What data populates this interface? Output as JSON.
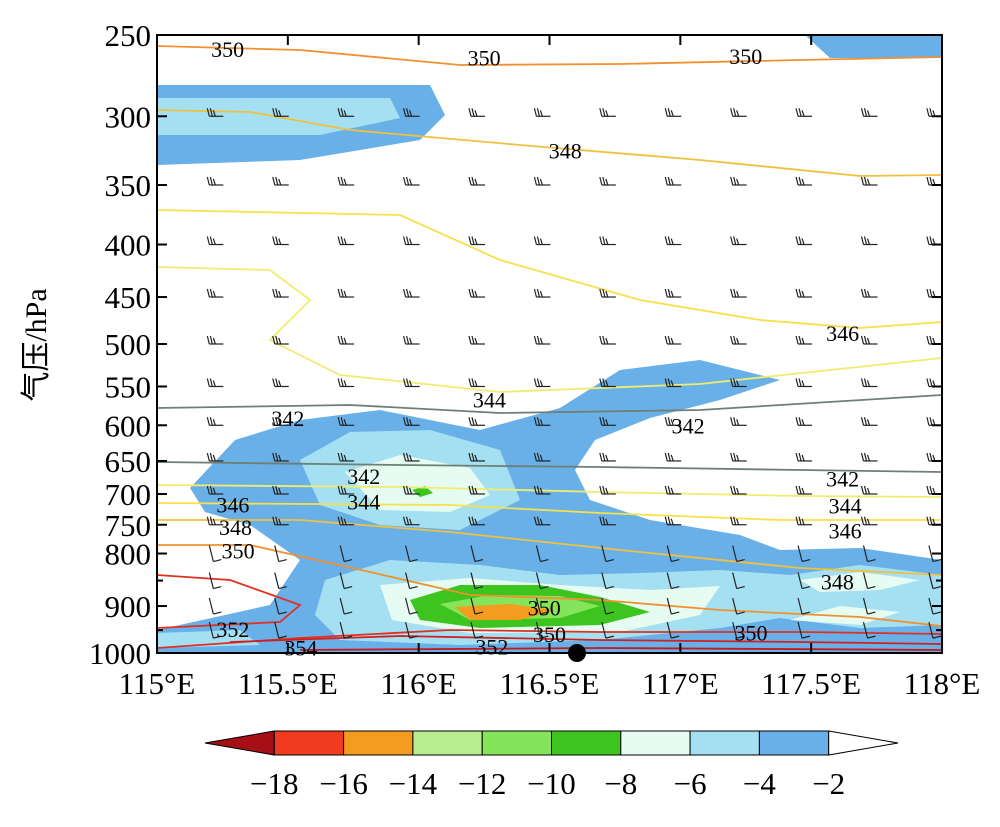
{
  "chart_data": {
    "type": "contour",
    "ylabel": "气压/hPa",
    "yscale": "log",
    "ylim": [
      1000,
      250
    ],
    "xlim": [
      115,
      118
    ],
    "y_ticks": [
      "250",
      "300",
      "350",
      "400",
      "450",
      "500",
      "550",
      "600",
      "650",
      "700",
      "750",
      "800",
      "900",
      "1000"
    ],
    "y_tick_values": [
      250,
      300,
      350,
      400,
      450,
      500,
      550,
      600,
      650,
      700,
      750,
      800,
      900,
      1000
    ],
    "y_minor_ticks": [
      850,
      950
    ],
    "x_ticks": [
      "115°E",
      "115.5°E",
      "116°E",
      "116.5°E",
      "117°E",
      "117.5°E",
      "118°E"
    ],
    "x_tick_values": [
      115,
      115.5,
      116,
      116.5,
      117,
      117.5,
      118
    ],
    "colorbar": {
      "tick_labels": [
        "−18",
        "−16",
        "−14",
        "−12",
        "−10",
        "−8",
        "−6",
        "−4",
        "−2"
      ],
      "colors": [
        "#a50f15",
        "#f03b20",
        "#f39c1f",
        "#b8ee90",
        "#86e45a",
        "#3dc41f",
        "#e6fbf2",
        "#a5e0f2",
        "#6ab0e8",
        "#ffffff"
      ]
    },
    "shading_levels": [
      {
        "level": -4,
        "color": "#6ab0e8"
      },
      {
        "level": -6,
        "color": "#a5e0f2"
      },
      {
        "level": -8,
        "color": "#e6fbf2"
      },
      {
        "level": -10,
        "color": "#3dc41f"
      },
      {
        "level": -12,
        "color": "#86e45a"
      },
      {
        "level": -14,
        "color": "#f39c1f"
      }
    ],
    "contour_lines": [
      {
        "value": 342,
        "color": "#6f7f74"
      },
      {
        "value": 344,
        "color": "#f0ec70"
      },
      {
        "value": 346,
        "color": "#f7e04a"
      },
      {
        "value": 348,
        "color": "#f0c040"
      },
      {
        "value": 350,
        "color": "#f09030"
      },
      {
        "value": 352,
        "color": "#e03020"
      },
      {
        "value": 354,
        "color": "#d02020"
      }
    ],
    "contour_labels": [
      {
        "text": "350",
        "x": 115.27,
        "p": 258
      },
      {
        "text": "350",
        "x": 116.25,
        "p": 263
      },
      {
        "text": "350",
        "x": 117.25,
        "p": 262
      },
      {
        "text": "348",
        "x": 116.56,
        "p": 324
      },
      {
        "text": "346",
        "x": 117.62,
        "p": 488
      },
      {
        "text": "344",
        "x": 116.27,
        "p": 566
      },
      {
        "text": "342",
        "x": 115.5,
        "p": 590
      },
      {
        "text": "342",
        "x": 117.03,
        "p": 600
      },
      {
        "text": "342",
        "x": 115.79,
        "p": 672
      },
      {
        "text": "344",
        "x": 115.79,
        "p": 712
      },
      {
        "text": "342",
        "x": 117.62,
        "p": 676
      },
      {
        "text": "344",
        "x": 117.63,
        "p": 718
      },
      {
        "text": "346",
        "x": 115.29,
        "p": 717
      },
      {
        "text": "346",
        "x": 117.63,
        "p": 760
      },
      {
        "text": "348",
        "x": 115.3,
        "p": 754
      },
      {
        "text": "350",
        "x": 115.31,
        "p": 795
      },
      {
        "text": "348",
        "x": 117.6,
        "p": 852
      },
      {
        "text": "350",
        "x": 116.48,
        "p": 903
      },
      {
        "text": "350",
        "x": 116.5,
        "p": 958
      },
      {
        "text": "350",
        "x": 117.27,
        "p": 955
      },
      {
        "text": "352",
        "x": 115.29,
        "p": 948
      },
      {
        "text": "352",
        "x": 116.28,
        "p": 985
      },
      {
        "text": "354",
        "x": 115.55,
        "p": 988
      }
    ],
    "marker": {
      "x": 116.6,
      "p": 1000
    }
  }
}
